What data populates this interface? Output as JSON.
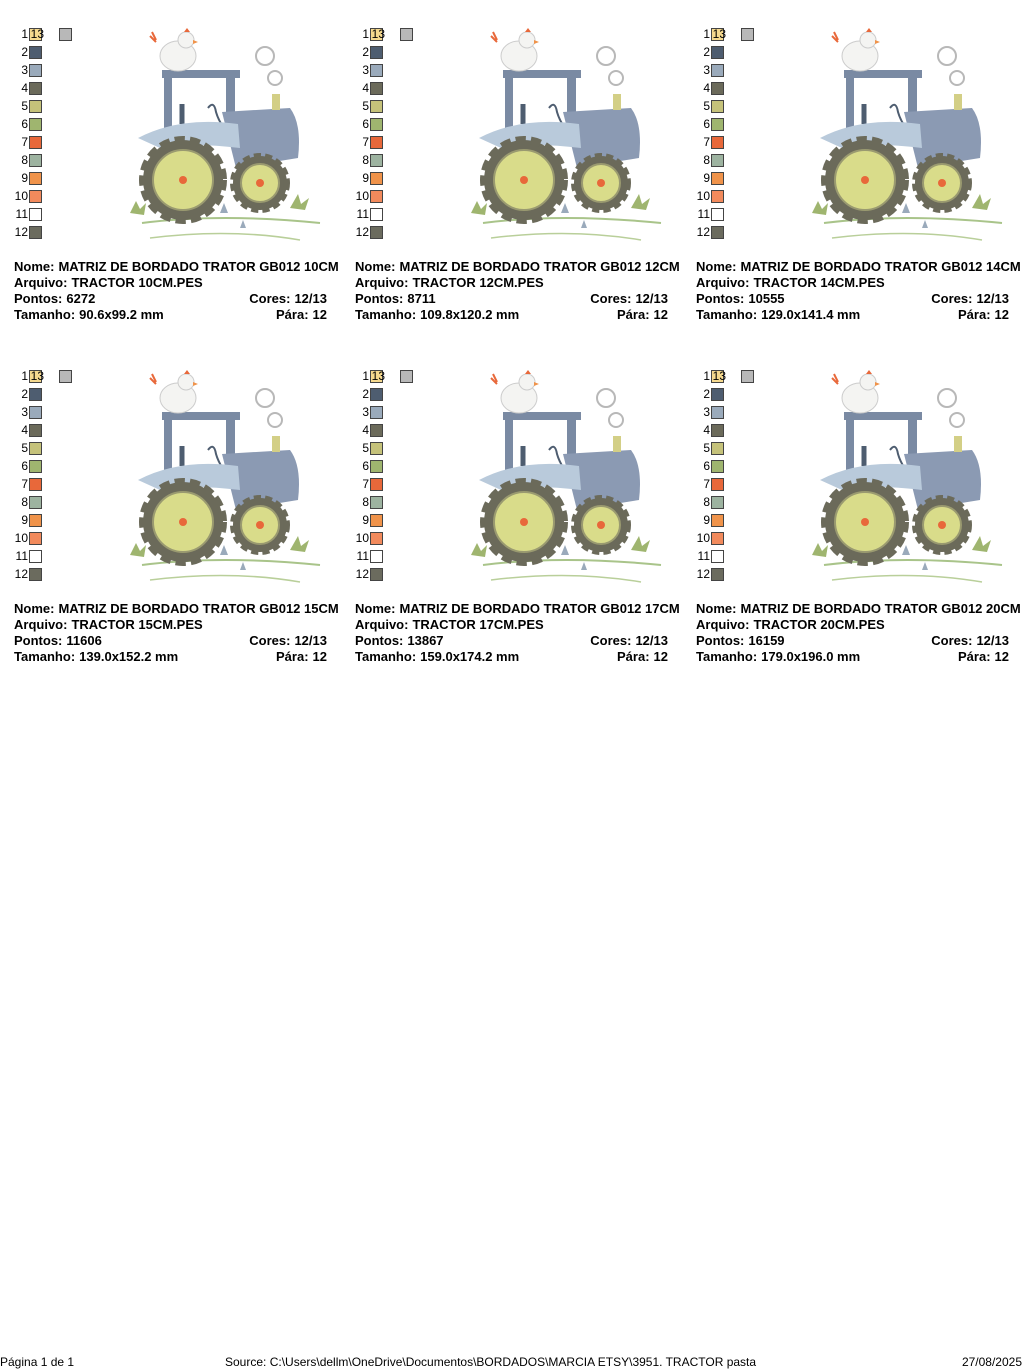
{
  "labels": {
    "name": "Nome:",
    "file": "Arquivo:",
    "points": "Pontos:",
    "colors": "Cores:",
    "size": "Tamanho:",
    "stops": "Pára:"
  },
  "swatches": [
    {
      "number": 1,
      "color": "#f5d98e"
    },
    {
      "number": 2,
      "color": "#4e5d70"
    },
    {
      "number": 3,
      "color": "#9aaabb"
    },
    {
      "number": 4,
      "color": "#6b6a5a"
    },
    {
      "number": 5,
      "color": "#c5c27a"
    },
    {
      "number": 6,
      "color": "#9fb56f"
    },
    {
      "number": 7,
      "color": "#e8683a"
    },
    {
      "number": 8,
      "color": "#9db3a0"
    },
    {
      "number": 9,
      "color": "#f0934a"
    },
    {
      "number": 10,
      "color": "#f28a5c"
    },
    {
      "number": 11,
      "color": "#ffffff"
    },
    {
      "number": 12,
      "color": "#6b6b5e"
    },
    {
      "number": 13,
      "color": "#b8b8b8"
    }
  ],
  "cards": [
    {
      "name": "MATRIZ DE BORDADO TRATOR GB012 10CM",
      "file": "TRACTOR 10CM.PES",
      "points": 6272,
      "colors": "12/13",
      "size": "90.6x99.2 mm",
      "stops": 12
    },
    {
      "name": "MATRIZ DE BORDADO TRATOR GB012 12CM",
      "file": "TRACTOR 12CM.PES",
      "points": 8711,
      "colors": "12/13",
      "size": "109.8x120.2 mm",
      "stops": 12
    },
    {
      "name": "MATRIZ DE BORDADO TRATOR GB012 14CM",
      "file": "TRACTOR 14CM.PES",
      "points": 10555,
      "colors": "12/13",
      "size": "129.0x141.4 mm",
      "stops": 12
    },
    {
      "name": "MATRIZ DE BORDADO TRATOR GB012 15CM",
      "file": "TRACTOR 15CM.PES",
      "points": 11606,
      "colors": "12/13",
      "size": "139.0x152.2 mm",
      "stops": 12
    },
    {
      "name": "MATRIZ DE BORDADO TRATOR GB012 17CM",
      "file": "TRACTOR 17CM.PES",
      "points": 13867,
      "colors": "12/13",
      "size": "159.0x174.2 mm",
      "stops": 12
    },
    {
      "name": "MATRIZ DE BORDADO TRATOR GB012 20CM",
      "file": "TRACTOR 20CM.PES",
      "points": 16159,
      "colors": "12/13",
      "size": "179.0x196.0 mm",
      "stops": 12
    }
  ],
  "footer": {
    "page": "Página 1 de 1",
    "source": "Source: C:\\Users\\dellm\\OneDrive\\Documentos\\BORDADOS\\MARCIA ETSY\\3951. TRACTOR pasta",
    "date": "27/08/2025"
  }
}
